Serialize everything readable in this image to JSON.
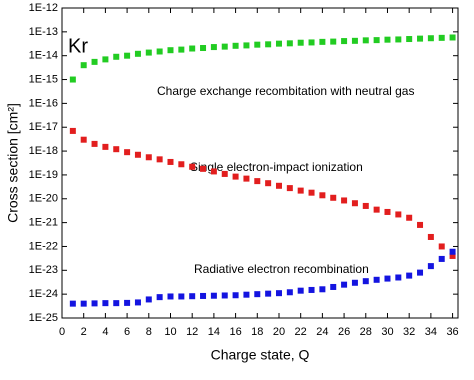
{
  "chart_data": {
    "type": "scatter",
    "annotations": [
      "Kr",
      "Charge exchange recombitation with neutral gas",
      "Single electron-impact ionization",
      "Radiative electron recombination"
    ],
    "x_label": "Charge state, Q",
    "y_label": "Cross section [cm²]",
    "log_y": true,
    "xlim": [
      0,
      36.5
    ],
    "xticks": [
      0,
      2,
      4,
      6,
      8,
      10,
      12,
      14,
      16,
      18,
      20,
      22,
      24,
      26,
      28,
      30,
      32,
      34,
      36
    ],
    "ylim": [
      1e-25,
      1e-12
    ],
    "yticks": [
      {
        "value": 1e-25,
        "label": "1E-25"
      },
      {
        "value": 1e-24,
        "label": "1E-24"
      },
      {
        "value": 1e-23,
        "label": "1E-23"
      },
      {
        "value": 1e-22,
        "label": "1E-22"
      },
      {
        "value": 1e-21,
        "label": "1E-21"
      },
      {
        "value": 1e-20,
        "label": "1E-20"
      },
      {
        "value": 1e-19,
        "label": "1E-19"
      },
      {
        "value": 1e-18,
        "label": "1E-18"
      },
      {
        "value": 1e-17,
        "label": "1E-17"
      },
      {
        "value": 1e-16,
        "label": "1E-16"
      },
      {
        "value": 1e-15,
        "label": "1E-15"
      },
      {
        "value": 1e-14,
        "label": "1E-14"
      },
      {
        "value": 1e-13,
        "label": "1E-13"
      },
      {
        "value": 1e-12,
        "label": "1E-12"
      }
    ],
    "x": [
      1,
      2,
      3,
      4,
      5,
      6,
      7,
      8,
      9,
      10,
      11,
      12,
      13,
      14,
      15,
      16,
      17,
      18,
      19,
      20,
      21,
      22,
      23,
      24,
      25,
      26,
      27,
      28,
      29,
      30,
      31,
      32,
      33,
      34,
      35,
      36
    ],
    "series": [
      {
        "color": "#22cc22",
        "values": [
          1e-15,
          4e-15,
          5.5e-15,
          7e-15,
          9e-15,
          1e-14,
          1.2e-14,
          1.35e-14,
          1.5e-14,
          1.7e-14,
          1.8e-14,
          2e-14,
          2.1e-14,
          2.3e-14,
          2.4e-14,
          2.6e-14,
          2.7e-14,
          2.9e-14,
          3e-14,
          3.2e-14,
          3.3e-14,
          3.5e-14,
          3.6e-14,
          3.8e-14,
          3.9e-14,
          4.1e-14,
          4.2e-14,
          4.4e-14,
          4.5e-14,
          4.7e-14,
          4.8e-14,
          5e-14,
          5.2e-14,
          5.4e-14,
          5.6e-14,
          5.8e-14
        ]
      },
      {
        "color": "#e21e1e",
        "values": [
          7e-18,
          3e-18,
          2e-18,
          1.5e-18,
          1.2e-18,
          9e-19,
          7e-19,
          5.5e-19,
          4.5e-19,
          3.5e-19,
          2.8e-19,
          2.2e-19,
          1.8e-19,
          1.4e-19,
          1.1e-19,
          8.5e-20,
          7e-20,
          5.5e-20,
          4.5e-20,
          3.5e-20,
          2.8e-20,
          2.2e-20,
          1.8e-20,
          1.4e-20,
          1.1e-20,
          8.5e-21,
          6.5e-21,
          5e-21,
          3.5e-21,
          2.8e-21,
          2.2e-21,
          1.6e-21,
          8e-22,
          2.5e-22,
          1e-22,
          4e-23
        ]
      },
      {
        "color": "#1414e0",
        "values": [
          4e-25,
          4e-25,
          4.1e-25,
          4.2e-25,
          4.2e-25,
          4.3e-25,
          4.5e-25,
          6e-25,
          7.5e-25,
          8e-25,
          8e-25,
          8.2e-25,
          8.4e-25,
          8.6e-25,
          8.8e-25,
          9e-25,
          9.5e-25,
          1e-24,
          1.05e-24,
          1.1e-24,
          1.2e-24,
          1.4e-24,
          1.5e-24,
          1.6e-24,
          2e-24,
          2.5e-24,
          3e-24,
          3.5e-24,
          4e-24,
          4.5e-24,
          5e-24,
          6e-24,
          8e-24,
          1.5e-23,
          3e-23,
          6e-23
        ]
      }
    ]
  }
}
